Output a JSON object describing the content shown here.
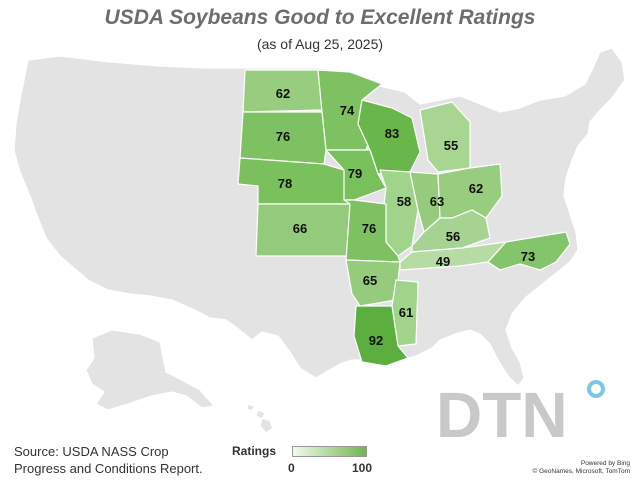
{
  "title": "USDA Soybeans Good to Excellent Ratings",
  "subtitle": "(as of Aug 25, 2025)",
  "source_line1": "Source: USDA NASS Crop",
  "source_line2": "Progress and Conditions Report.",
  "legend": {
    "label": "Ratings",
    "min": "0",
    "max": "100",
    "color_min": "#f4f9ee",
    "color_max": "#6fb64f"
  },
  "credit_line1": "Powered by Bing",
  "credit_line2": "© GeoNames, Microsoft, TomTom",
  "logo_text": "DTN",
  "colors": {
    "no_data": "#e3e3e3",
    "border": "#ffffff"
  },
  "ratings": [
    {
      "state": "North Dakota",
      "value": "62"
    },
    {
      "state": "Minnesota",
      "value": "74"
    },
    {
      "state": "Wisconsin",
      "value": "83"
    },
    {
      "state": "Michigan",
      "value": "55"
    },
    {
      "state": "South Dakota",
      "value": "76"
    },
    {
      "state": "Nebraska",
      "value": "78"
    },
    {
      "state": "Iowa",
      "value": "79"
    },
    {
      "state": "Illinois",
      "value": "58"
    },
    {
      "state": "Indiana",
      "value": "63"
    },
    {
      "state": "Ohio",
      "value": "62"
    },
    {
      "state": "Kansas",
      "value": "66"
    },
    {
      "state": "Missouri",
      "value": "76"
    },
    {
      "state": "Kentucky",
      "value": "56"
    },
    {
      "state": "Tennessee",
      "value": "49"
    },
    {
      "state": "North Carolina",
      "value": "73"
    },
    {
      "state": "Arkansas",
      "value": "65"
    },
    {
      "state": "Mississippi",
      "value": "61"
    },
    {
      "state": "Louisiana",
      "value": "92"
    }
  ]
}
